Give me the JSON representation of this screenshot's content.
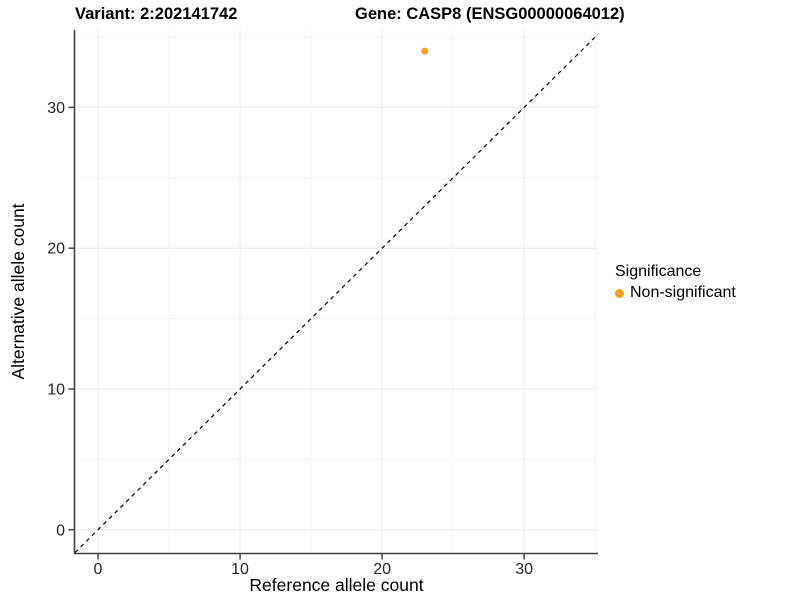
{
  "chart_data": {
    "type": "scatter",
    "variant_title": "Variant: 2:202141742",
    "gene_title": "Gene: CASP8 (ENSG00000064012)",
    "xlabel": "Reference allele count",
    "ylabel": "Alternative allele count",
    "xlim": [
      -1.62,
      35.2
    ],
    "ylim": [
      -1.65,
      35.5
    ],
    "xticks": [
      0,
      10,
      20,
      30
    ],
    "yticks": [
      0,
      10,
      20,
      30
    ],
    "xticks_minor": [
      5,
      15,
      25,
      35
    ],
    "yticks_minor": [
      5,
      15,
      25,
      35
    ],
    "grid": true,
    "identity_line": {
      "slope": 1,
      "intercept": 0,
      "style": "dashed",
      "color": "#000000"
    },
    "series": [
      {
        "name": "Non-significant",
        "color": "#FA9E1E",
        "points": [
          {
            "x": 23,
            "y": 34
          }
        ]
      }
    ],
    "legend": {
      "title": "Significance",
      "position": "right",
      "items": [
        {
          "label": "Non-significant",
          "color": "#FA9E1E"
        }
      ]
    }
  },
  "colors": {
    "background": "#ffffff",
    "point": "#FA9E1E",
    "axis": "#404040",
    "tick_label": "#262626",
    "grid_major": "#ececec",
    "grid_minor": "#f5f5f5",
    "dashed_line": "#000000"
  }
}
